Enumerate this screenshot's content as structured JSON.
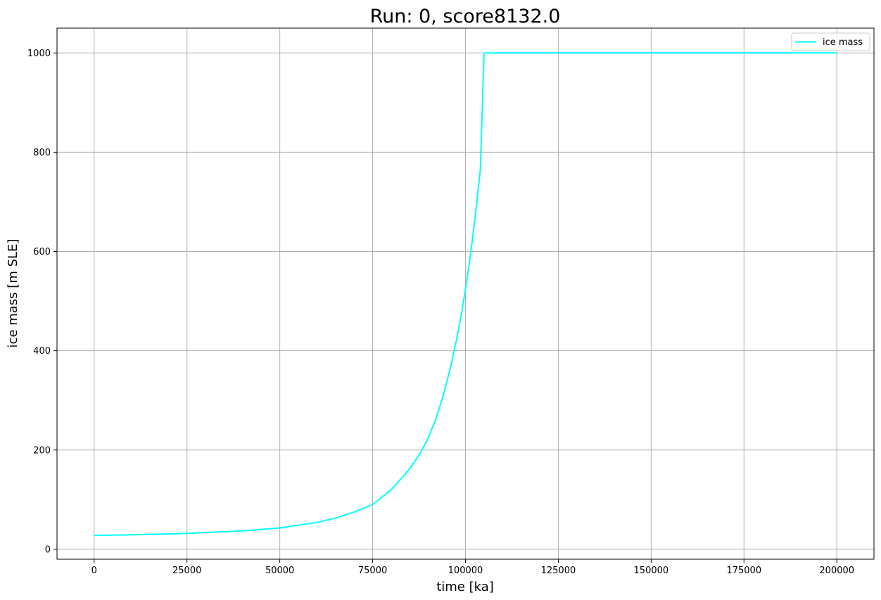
{
  "chart_data": {
    "type": "line",
    "title": "Run: 0, score8132.0",
    "xlabel": "time [ka]",
    "ylabel": "ice mass [m SLE]",
    "xlim": [
      -10000,
      210000
    ],
    "ylim": [
      -20,
      1050
    ],
    "x_ticks": [
      0,
      25000,
      50000,
      75000,
      100000,
      125000,
      150000,
      175000,
      200000
    ],
    "y_ticks": [
      0,
      200,
      400,
      600,
      800,
      1000
    ],
    "grid": true,
    "legend_position": "top-right",
    "series": [
      {
        "name": "ice mass",
        "color": "#00ffff",
        "x": [
          0,
          10000,
          25000,
          40000,
          50000,
          60000,
          65000,
          70000,
          75000,
          80000,
          85000,
          88000,
          90000,
          92000,
          94000,
          96000,
          98000,
          99000,
          100000,
          101000,
          102000,
          103000,
          104000,
          105000,
          200000
        ],
        "y": [
          28,
          29,
          32,
          37,
          43,
          54,
          63,
          75,
          90,
          120,
          162,
          196,
          225,
          262,
          310,
          367,
          437,
          478,
          524,
          575,
          632,
          695,
          765,
          1000,
          1000
        ]
      }
    ]
  }
}
